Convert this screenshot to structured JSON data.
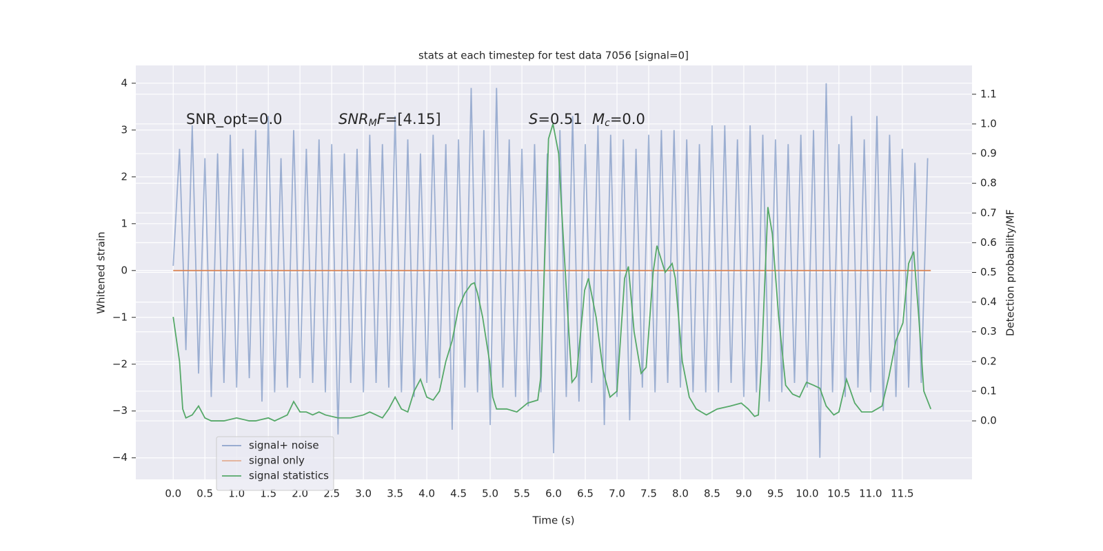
{
  "chart_data": {
    "type": "line",
    "title": "stats at each timestep for test data 7056 [signal=0]",
    "xlabel": "Time (s)",
    "ylabel": "Whitened strain",
    "y2label": "Detection probability/MF",
    "annotations": [
      [
        {
          "text": "SNR_opt=0.0"
        }
      ],
      [
        {
          "text": "SNR",
          "italic": true
        },
        {
          "text": "M",
          "italic": true,
          "sub": true
        },
        {
          "text": "F",
          "italic": true
        },
        {
          "text": "=[4.15]"
        }
      ],
      [
        {
          "text": "S",
          "italic": true
        },
        {
          "text": "=0.51"
        }
      ],
      [
        {
          "text": "M",
          "italic": true
        },
        {
          "text": "c",
          "italic": true,
          "sub": true
        },
        {
          "text": "=0.0"
        }
      ]
    ],
    "xlim": [
      -0.59,
      12.6
    ],
    "ylim": [
      -4.46,
      4.38
    ],
    "y2lim": [
      -0.197,
      1.197
    ],
    "xticks": [
      {
        "value": 0,
        "label": "0.0"
      },
      0.5,
      {
        "value": 1,
        "label": "1.0"
      },
      1.5,
      {
        "value": 2,
        "label": "2.0"
      },
      2.5,
      {
        "value": 3,
        "label": "3.0"
      },
      3.5,
      {
        "value": 4,
        "label": "4.0"
      },
      4.5,
      {
        "value": 5,
        "label": "5.0"
      },
      5.5,
      {
        "value": 6,
        "label": "6.0"
      },
      6.5,
      {
        "value": 7,
        "label": "7.0"
      },
      7.5,
      {
        "value": 8,
        "label": "8.0"
      },
      8.5,
      {
        "value": 9,
        "label": "9.0"
      },
      9.5,
      {
        "value": 10,
        "label": "10.0"
      },
      10.5,
      {
        "value": 11,
        "label": "11.0"
      },
      11.5
    ],
    "yticks": [
      {
        "value": -4,
        "label": "−4"
      },
      {
        "value": -3,
        "label": "−3"
      },
      {
        "value": -2,
        "label": "−2"
      },
      {
        "value": -1,
        "label": "−1"
      },
      0,
      1,
      2,
      3,
      4
    ],
    "y2ticks": [
      {
        "value": 0,
        "label": "0.0"
      },
      0.1,
      0.2,
      0.3,
      0.4,
      0.5,
      0.6,
      0.7,
      0.8,
      0.9,
      {
        "value": 1,
        "label": "1.0"
      },
      1.1
    ],
    "grid": true,
    "legend": "lower left",
    "series": [
      {
        "name": "signal+ noise",
        "color": "#4c72b0",
        "opacity": 0.5,
        "axis": "y",
        "x": [
          0.0,
          0.1,
          0.2,
          0.3,
          0.4,
          0.5,
          0.6,
          0.7,
          0.8,
          0.9,
          1.0,
          1.1,
          1.2,
          1.3,
          1.4,
          1.5,
          1.6,
          1.7,
          1.8,
          1.9,
          2.0,
          2.1,
          2.2,
          2.3,
          2.4,
          2.5,
          2.6,
          2.7,
          2.8,
          2.9,
          3.0,
          3.1,
          3.2,
          3.3,
          3.4,
          3.5,
          3.6,
          3.7,
          3.8,
          3.9,
          4.0,
          4.1,
          4.2,
          4.3,
          4.4,
          4.5,
          4.6,
          4.7,
          4.8,
          4.9,
          5.0,
          5.1,
          5.2,
          5.3,
          5.4,
          5.5,
          5.6,
          5.7,
          5.8,
          5.9,
          6.0,
          6.1,
          6.2,
          6.3,
          6.4,
          6.5,
          6.6,
          6.7,
          6.8,
          6.9,
          7.0,
          7.1,
          7.2,
          7.3,
          7.4,
          7.5,
          7.6,
          7.7,
          7.8,
          7.9,
          8.0,
          8.1,
          8.2,
          8.3,
          8.4,
          8.5,
          8.6,
          8.7,
          8.8,
          8.9,
          9.0,
          9.1,
          9.2,
          9.3,
          9.4,
          9.5,
          9.6,
          9.7,
          9.8,
          9.9,
          10.0,
          10.1,
          10.2,
          10.3,
          10.4,
          10.5,
          10.6,
          10.7,
          10.8,
          10.9,
          11.0,
          11.1,
          11.2,
          11.3,
          11.4,
          11.5,
          11.6,
          11.7,
          11.8,
          11.9
        ],
        "values": [
          0.1,
          2.6,
          -1.7,
          3.1,
          -2.2,
          2.4,
          -2.7,
          2.5,
          -2.4,
          2.9,
          -2.5,
          2.6,
          -2.3,
          3.0,
          -2.8,
          3.3,
          -2.6,
          2.4,
          -2.5,
          3.0,
          -2.3,
          2.6,
          -2.4,
          2.8,
          -2.6,
          2.7,
          -3.5,
          2.5,
          -2.4,
          2.6,
          -2.6,
          2.9,
          -2.4,
          2.7,
          -2.5,
          3.3,
          -2.6,
          2.8,
          -2.7,
          2.5,
          -2.4,
          2.9,
          -2.3,
          2.7,
          -3.4,
          2.8,
          -2.5,
          3.9,
          -2.6,
          3.0,
          -3.3,
          3.9,
          -2.5,
          2.8,
          -2.7,
          2.6,
          -2.9,
          2.7,
          -2.6,
          2.5,
          -3.9,
          3.0,
          -2.7,
          3.3,
          -2.8,
          2.7,
          -2.4,
          3.1,
          -3.3,
          2.9,
          -2.7,
          2.8,
          -3.2,
          2.6,
          -2.5,
          2.9,
          -2.6,
          3.0,
          -2.4,
          3.0,
          -2.5,
          2.8,
          -2.6,
          2.7,
          -2.6,
          3.1,
          -2.6,
          3.1,
          -2.4,
          2.8,
          -2.7,
          3.1,
          -2.6,
          2.9,
          -2.8,
          2.8,
          -2.6,
          2.7,
          -2.4,
          2.9,
          -2.5,
          3.0,
          -4.0,
          4.0,
          -2.6,
          2.7,
          -2.7,
          3.3,
          -2.5,
          2.8,
          -2.6,
          3.3,
          -3.0,
          2.9,
          -2.7,
          2.6,
          -2.5,
          2.3,
          -2.4,
          2.4
        ]
      },
      {
        "name": "signal only",
        "color": "#dd8452",
        "axis": "y",
        "x": [
          0,
          11.95
        ],
        "values": [
          0,
          0
        ]
      },
      {
        "name": "signal statistics",
        "color": "#55a868",
        "axis": "y2",
        "x": [
          0,
          0.1,
          0.15,
          0.2,
          0.3,
          0.4,
          0.5,
          0.6,
          0.8,
          1.0,
          1.2,
          1.3,
          1.5,
          1.6,
          1.7,
          1.8,
          1.9,
          2.0,
          2.1,
          2.2,
          2.3,
          2.4,
          2.6,
          2.8,
          3.0,
          3.1,
          3.2,
          3.3,
          3.4,
          3.5,
          3.6,
          3.7,
          3.8,
          3.9,
          4.0,
          4.1,
          4.2,
          4.3,
          4.4,
          4.5,
          4.6,
          4.7,
          4.75,
          4.8,
          4.88,
          4.99,
          5.04,
          5.1,
          5.26,
          5.42,
          5.59,
          5.75,
          5.8,
          5.86,
          5.92,
          5.99,
          6.08,
          6.13,
          6.24,
          6.29,
          6.36,
          6.49,
          6.55,
          6.67,
          6.78,
          6.89,
          7.0,
          7.12,
          7.18,
          7.27,
          7.38,
          7.46,
          7.57,
          7.63,
          7.76,
          7.87,
          7.92,
          8.03,
          8.14,
          8.25,
          8.41,
          8.58,
          8.79,
          8.96,
          9.07,
          9.17,
          9.23,
          9.28,
          9.38,
          9.45,
          9.55,
          9.66,
          9.77,
          9.88,
          9.99,
          10.1,
          10.2,
          10.3,
          10.42,
          10.5,
          10.62,
          10.75,
          10.86,
          11.02,
          11.18,
          11.29,
          11.4,
          11.51,
          11.6,
          11.68,
          11.76,
          11.84,
          11.95
        ],
        "values": [
          0.35,
          0.2,
          0.04,
          0.01,
          0.02,
          0.05,
          0.01,
          0.0,
          0.0,
          0.01,
          0.0,
          0.0,
          0.01,
          0.0,
          0.01,
          0.02,
          0.065,
          0.03,
          0.03,
          0.02,
          0.03,
          0.02,
          0.01,
          0.01,
          0.02,
          0.03,
          0.02,
          0.01,
          0.04,
          0.08,
          0.04,
          0.03,
          0.1,
          0.14,
          0.08,
          0.07,
          0.1,
          0.2,
          0.27,
          0.38,
          0.43,
          0.46,
          0.465,
          0.43,
          0.35,
          0.2,
          0.08,
          0.04,
          0.04,
          0.03,
          0.06,
          0.07,
          0.15,
          0.55,
          0.95,
          1.0,
          0.9,
          0.7,
          0.3,
          0.13,
          0.15,
          0.44,
          0.48,
          0.35,
          0.17,
          0.08,
          0.1,
          0.48,
          0.52,
          0.3,
          0.16,
          0.18,
          0.5,
          0.59,
          0.5,
          0.53,
          0.48,
          0.2,
          0.08,
          0.04,
          0.02,
          0.04,
          0.05,
          0.06,
          0.04,
          0.015,
          0.02,
          0.2,
          0.72,
          0.63,
          0.35,
          0.12,
          0.09,
          0.08,
          0.13,
          0.12,
          0.11,
          0.05,
          0.02,
          0.03,
          0.14,
          0.06,
          0.03,
          0.03,
          0.05,
          0.15,
          0.27,
          0.33,
          0.53,
          0.57,
          0.35,
          0.1,
          0.04
        ]
      }
    ]
  }
}
